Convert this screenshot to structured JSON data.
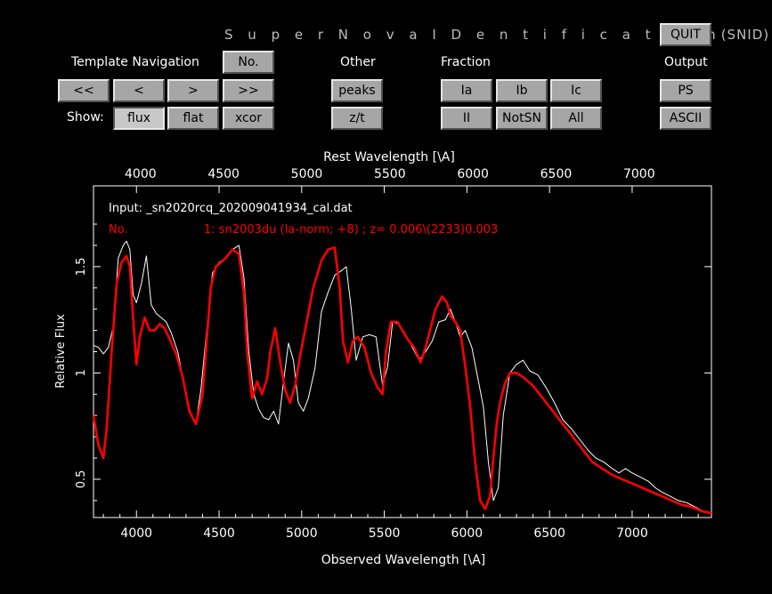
{
  "app_title": "S u p e r N o v a   I D e n t i f i c a t i o n",
  "app_title_suffix": "(SNID)",
  "buttons": {
    "quit": "QUIT",
    "number": "No.",
    "first": "<<",
    "prev": "<",
    "next": ">",
    "last": ">>",
    "flux": "flux",
    "flat": "flat",
    "xcor": "xcor",
    "peaks": "peaks",
    "zt": "z/t",
    "ia": "Ia",
    "ib": "Ib",
    "ic": "Ic",
    "ii": "II",
    "notsn": "NotSN",
    "all": "All",
    "ps": "PS",
    "ascii": "ASCII"
  },
  "labels": {
    "template_navigation": "Template Navigation",
    "other": "Other",
    "fraction": "Fraction",
    "output": "Output",
    "show": "Show:"
  },
  "active_view": "flux",
  "colors": {
    "template_curve": "#ff0000",
    "input_spectrum": "#ffffff",
    "background": "#000000"
  },
  "chart_data": {
    "type": "line",
    "top_axis_label": "Rest Wavelength [\\A]",
    "xlabel": "Observed Wavelength [\\A]",
    "ylabel": "Relative Flux",
    "xlim": [
      3740,
      7480
    ],
    "ylim": [
      0.32,
      1.88
    ],
    "rest_xlim": [
      3717,
      7435
    ],
    "x_ticks": [
      4000,
      4500,
      5000,
      5500,
      6000,
      6500,
      7000
    ],
    "x_tick_labels": [
      "4000",
      "4500",
      "5000",
      "5500",
      "6000",
      "6500",
      "7000"
    ],
    "top_ticks": [
      4000,
      4500,
      5000,
      5500,
      6000,
      6500,
      7000
    ],
    "top_tick_labels": [
      "4000",
      "4500",
      "5000",
      "5500",
      "6000",
      "6500",
      "7000"
    ],
    "y_ticks": [
      0.5,
      1,
      1.5
    ],
    "y_tick_labels": [
      "0.5",
      "1",
      "1.5"
    ],
    "grid": false,
    "annotations": {
      "input_line": "Input: _sn2020rcq_202009041934_cal.dat",
      "match_prefix": "No.",
      "match_line": "1: sn2003du (Ia-norm; +8) ; z= 0.006\\(2233)0.003"
    },
    "series": [
      {
        "name": "Input: _sn2020rcq_202009041934_cal.dat",
        "color": "#ffffff",
        "x": [
          3740,
          3770,
          3800,
          3830,
          3860,
          3890,
          3920,
          3940,
          3960,
          3980,
          4000,
          4030,
          4060,
          4090,
          4120,
          4150,
          4180,
          4210,
          4250,
          4290,
          4330,
          4360,
          4390,
          4420,
          4460,
          4500,
          4540,
          4580,
          4620,
          4650,
          4680,
          4710,
          4740,
          4770,
          4800,
          4830,
          4860,
          4890,
          4920,
          4950,
          4980,
          5010,
          5040,
          5080,
          5120,
          5160,
          5200,
          5240,
          5270,
          5300,
          5330,
          5370,
          5410,
          5450,
          5490,
          5520,
          5550,
          5590,
          5630,
          5670,
          5710,
          5750,
          5790,
          5830,
          5870,
          5900,
          5930,
          5960,
          5990,
          6030,
          6060,
          6100,
          6130,
          6160,
          6190,
          6220,
          6260,
          6300,
          6340,
          6380,
          6430,
          6480,
          6530,
          6580,
          6630,
          6680,
          6730,
          6780,
          6830,
          6880,
          6920,
          6960,
          7000,
          7050,
          7100,
          7140,
          7180,
          7230,
          7280,
          7330,
          7380,
          7430,
          7480
        ],
        "y": [
          1.13,
          1.12,
          1.09,
          1.12,
          1.22,
          1.54,
          1.6,
          1.62,
          1.58,
          1.37,
          1.33,
          1.42,
          1.55,
          1.32,
          1.28,
          1.26,
          1.24,
          1.19,
          1.1,
          0.94,
          0.8,
          0.76,
          0.92,
          1.16,
          1.47,
          1.52,
          1.54,
          1.58,
          1.6,
          1.45,
          1.1,
          0.9,
          0.83,
          0.79,
          0.78,
          0.82,
          0.76,
          0.96,
          1.14,
          1.06,
          0.86,
          0.82,
          0.88,
          1.02,
          1.29,
          1.38,
          1.46,
          1.48,
          1.5,
          1.3,
          1.06,
          1.17,
          1.18,
          1.17,
          0.94,
          1.03,
          1.24,
          1.23,
          1.18,
          1.12,
          1.06,
          1.1,
          1.15,
          1.24,
          1.25,
          1.3,
          1.24,
          1.17,
          1.2,
          1.12,
          1.0,
          0.84,
          0.58,
          0.4,
          0.46,
          0.8,
          1.0,
          1.04,
          1.06,
          1.01,
          0.99,
          0.93,
          0.86,
          0.78,
          0.74,
          0.69,
          0.64,
          0.6,
          0.58,
          0.55,
          0.53,
          0.55,
          0.53,
          0.51,
          0.49,
          0.46,
          0.44,
          0.42,
          0.4,
          0.39,
          0.37,
          0.35,
          0.34
        ]
      },
      {
        "name": "1: sn2003du (Ia-norm; +8)",
        "color": "#ff0000",
        "x": [
          3740,
          3770,
          3800,
          3820,
          3850,
          3880,
          3910,
          3940,
          3960,
          3980,
          4000,
          4020,
          4050,
          4080,
          4110,
          4140,
          4170,
          4200,
          4240,
          4280,
          4320,
          4360,
          4400,
          4420,
          4450,
          4480,
          4510,
          4540,
          4580,
          4620,
          4650,
          4670,
          4700,
          4730,
          4760,
          4790,
          4810,
          4840,
          4870,
          4900,
          4930,
          4960,
          4990,
          5030,
          5070,
          5120,
          5160,
          5200,
          5230,
          5250,
          5280,
          5310,
          5340,
          5380,
          5420,
          5460,
          5490,
          5510,
          5540,
          5580,
          5610,
          5640,
          5680,
          5720,
          5750,
          5780,
          5810,
          5850,
          5880,
          5900,
          5930,
          5960,
          5990,
          6020,
          6050,
          6080,
          6110,
          6140,
          6160,
          6180,
          6200,
          6230,
          6260,
          6300,
          6340,
          6400,
          6460,
          6520,
          6580,
          6640,
          6700,
          6760,
          6820,
          6880,
          6940,
          7000,
          7060,
          7120,
          7180,
          7240,
          7300,
          7360,
          7420,
          7480
        ],
        "y": [
          0.8,
          0.66,
          0.6,
          0.74,
          1.1,
          1.42,
          1.52,
          1.55,
          1.5,
          1.26,
          1.04,
          1.17,
          1.26,
          1.2,
          1.2,
          1.23,
          1.21,
          1.16,
          1.09,
          0.98,
          0.82,
          0.76,
          0.9,
          1.1,
          1.4,
          1.5,
          1.52,
          1.54,
          1.58,
          1.56,
          1.38,
          1.1,
          0.88,
          0.96,
          0.9,
          0.97,
          1.1,
          1.21,
          1.05,
          0.92,
          0.86,
          0.94,
          1.08,
          1.24,
          1.4,
          1.53,
          1.58,
          1.59,
          1.4,
          1.15,
          1.05,
          1.15,
          1.17,
          1.12,
          1.0,
          0.93,
          0.9,
          1.1,
          1.24,
          1.24,
          1.2,
          1.16,
          1.12,
          1.05,
          1.12,
          1.21,
          1.3,
          1.36,
          1.33,
          1.27,
          1.24,
          1.2,
          1.03,
          0.84,
          0.58,
          0.4,
          0.36,
          0.42,
          0.6,
          0.76,
          0.86,
          0.95,
          1.0,
          1.0,
          0.98,
          0.94,
          0.88,
          0.82,
          0.76,
          0.7,
          0.64,
          0.58,
          0.55,
          0.52,
          0.5,
          0.48,
          0.46,
          0.44,
          0.42,
          0.4,
          0.38,
          0.37,
          0.35,
          0.34
        ]
      }
    ]
  }
}
